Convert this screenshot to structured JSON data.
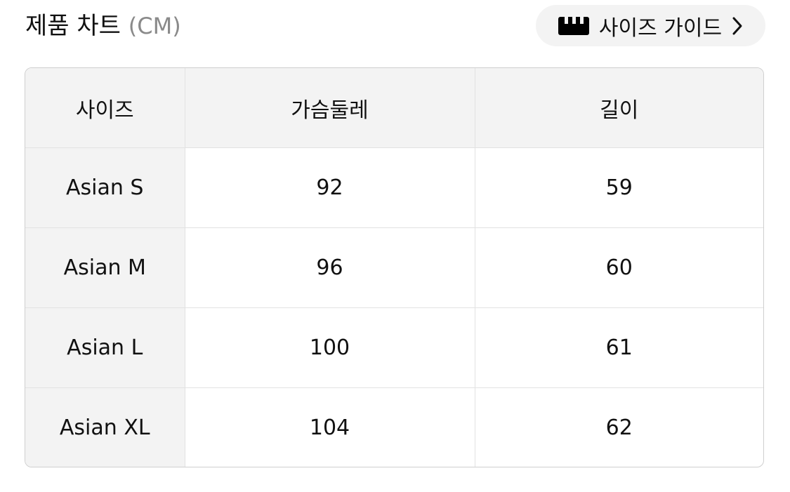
{
  "header": {
    "title": "제품 차트",
    "unit": "(CM)"
  },
  "guide_button": {
    "label": "사이즈 가이드",
    "icon": "ruler-icon",
    "chevron": "chevron-right-icon"
  },
  "table": {
    "columns": [
      "사이즈",
      "가슴둘레",
      "길이"
    ],
    "rows": [
      [
        "Asian S",
        "92",
        "59"
      ],
      [
        "Asian M",
        "96",
        "60"
      ],
      [
        "Asian L",
        "100",
        "61"
      ],
      [
        "Asian XL",
        "104",
        "62"
      ]
    ]
  }
}
